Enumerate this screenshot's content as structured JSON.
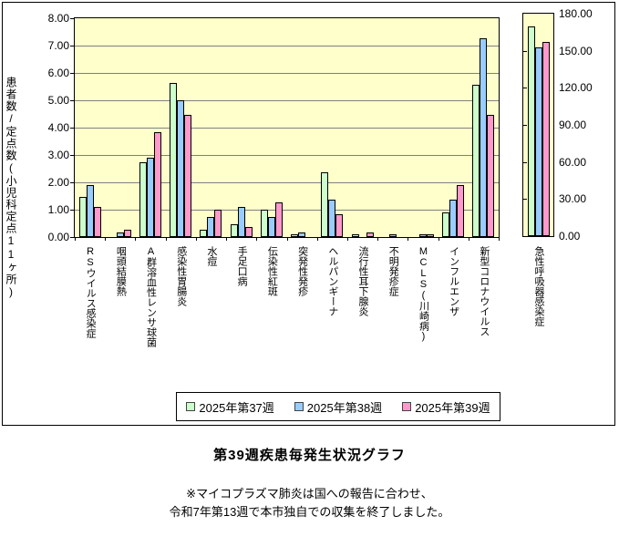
{
  "page": {
    "title": "第39週疾患毎発生状況グラフ",
    "notes": [
      "※マイコプラズマ肺炎は国への報告に合わせ、",
      "令和7年第13週で本市独自での収集を終了しました。"
    ]
  },
  "chart_data": {
    "type": "bar",
    "title": "第39週疾患毎発生状況グラフ",
    "y_axis_title": "患者数/定点数(小児科定点11ヶ所)",
    "grid": "horizontal",
    "legend_position": "bottom",
    "plot_bg": "#FFFFCC",
    "gridline_color": "#808080",
    "left_axis": {
      "min": 0,
      "max": 8,
      "tick_step": 1,
      "tick_labels": [
        "8.00",
        "7.00",
        "6.00",
        "5.00",
        "4.00",
        "3.00",
        "2.00",
        "1.00",
        "0.00"
      ]
    },
    "right_axis": {
      "min": 0,
      "max": 180,
      "tick_step": 30,
      "tick_labels": [
        "180.00",
        "150.00",
        "120.00",
        "90.00",
        "60.00",
        "30.00",
        "0.00"
      ]
    },
    "series": [
      {
        "name": "2025年第37週",
        "color": "#CCFFCC"
      },
      {
        "name": "2025年第38週",
        "color": "#99CCFF"
      },
      {
        "name": "2025年第39週",
        "color": "#FF99CC"
      }
    ],
    "groups": [
      {
        "label": "RSウイルス感染症",
        "values": [
          1.45,
          1.91,
          1.09
        ]
      },
      {
        "label": "咽頭結膜熱",
        "values": [
          0,
          0.18,
          0.27
        ]
      },
      {
        "label": "A群溶血性レンサ球菌",
        "values": [
          2.73,
          2.91,
          3.82
        ]
      },
      {
        "label": "感染性胃腸炎",
        "values": [
          5.64,
          5.0,
          4.45
        ]
      },
      {
        "label": "水痘",
        "values": [
          0.27,
          0.73,
          1.0
        ]
      },
      {
        "label": "手足口病",
        "values": [
          0.45,
          1.09,
          0.36
        ]
      },
      {
        "label": "伝染性紅斑",
        "values": [
          1.0,
          0.73,
          1.27
        ]
      },
      {
        "label": "突発性発疹",
        "values": [
          0.09,
          0.18,
          0
        ]
      },
      {
        "label": "ヘルパンギーナ",
        "values": [
          2.36,
          1.36,
          0.82
        ]
      },
      {
        "label": "流行性耳下腺炎",
        "values": [
          0.09,
          0,
          0.18
        ]
      },
      {
        "label": "不明発疹症",
        "values": [
          0,
          0.09,
          0
        ]
      },
      {
        "label": "MCLS(川崎病)",
        "values": [
          0,
          0.09,
          0.09
        ]
      },
      {
        "label": "インフルエンザ",
        "values": [
          0.91,
          1.36,
          1.91
        ]
      },
      {
        "label": "新型コロナウイルス",
        "values": [
          5.55,
          7.27,
          4.45
        ]
      }
    ],
    "right_axis_group": {
      "label": "急性呼吸器感染症",
      "values": [
        170,
        153,
        157
      ]
    }
  }
}
